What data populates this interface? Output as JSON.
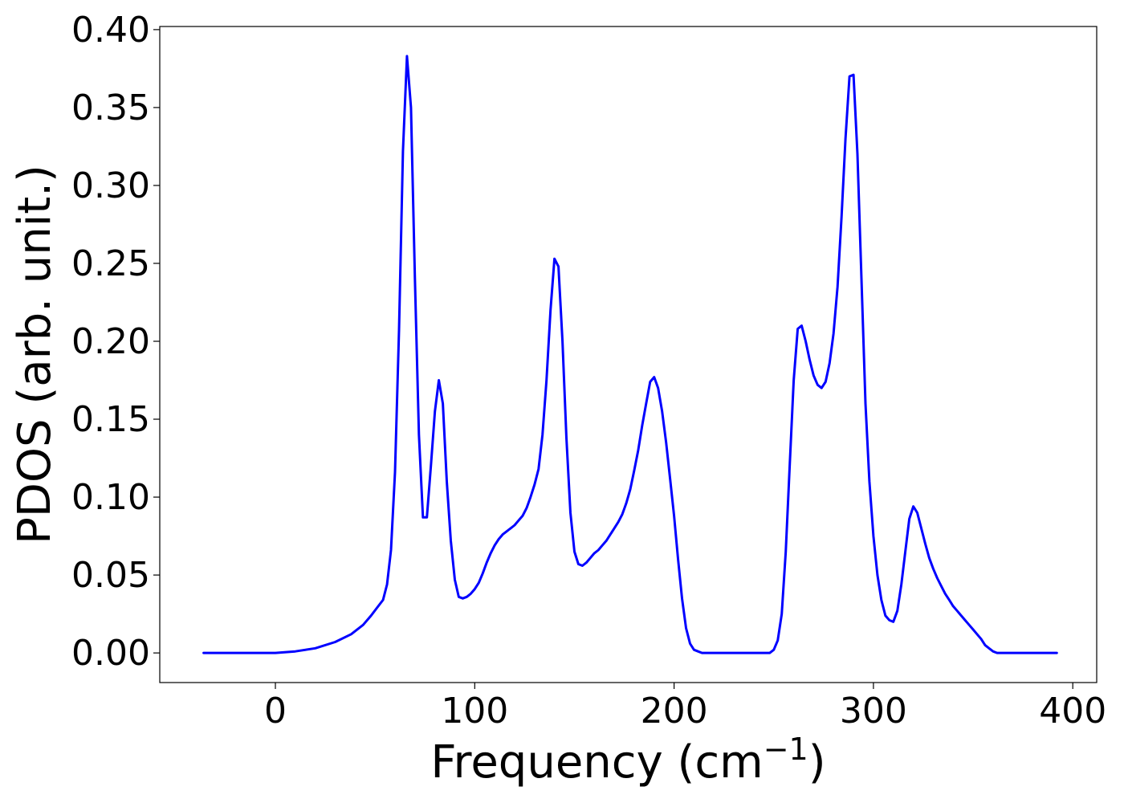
{
  "chart_data": {
    "type": "line",
    "title": "",
    "xlabel": "Frequency (cm",
    "xlabel_superscript": "−1",
    "xlabel_close": ")",
    "ylabel": "PDOS (arb. unit.)",
    "xlim": [
      -58,
      412
    ],
    "ylim": [
      -0.019,
      0.402
    ],
    "xticks": [
      0,
      100,
      200,
      300,
      400
    ],
    "xtick_labels": [
      "0",
      "100",
      "200",
      "300",
      "400"
    ],
    "yticks": [
      0.0,
      0.05,
      0.1,
      0.15,
      0.2,
      0.25,
      0.3,
      0.35,
      0.4
    ],
    "ytick_labels": [
      "0.00",
      "0.05",
      "0.10",
      "0.15",
      "0.20",
      "0.25",
      "0.30",
      "0.35",
      "0.40"
    ],
    "grid": false,
    "legend": "none",
    "series": [
      {
        "color": "#0000ff",
        "x": [
          -36,
          -20,
          0,
          10,
          20,
          30,
          38,
          44,
          48,
          51,
          54,
          56,
          58,
          60,
          62,
          64,
          66,
          68,
          70,
          72,
          74,
          76,
          78,
          80,
          82,
          84,
          86,
          88,
          90,
          92,
          94,
          96,
          98,
          100,
          102,
          104,
          106,
          108,
          110,
          112,
          114,
          116,
          118,
          120,
          122,
          124,
          126,
          128,
          130,
          132,
          134,
          136,
          138,
          140,
          142,
          144,
          146,
          148,
          150,
          152,
          154,
          156,
          158,
          160,
          162,
          164,
          166,
          168,
          170,
          172,
          174,
          176,
          178,
          180,
          182,
          184,
          186,
          188,
          190,
          192,
          194,
          196,
          198,
          200,
          202,
          204,
          206,
          208,
          210,
          212,
          214,
          220,
          230,
          240,
          248,
          250,
          252,
          254,
          256,
          258,
          260,
          262,
          264,
          266,
          268,
          270,
          272,
          274,
          276,
          278,
          280,
          282,
          284,
          286,
          288,
          290,
          292,
          294,
          296,
          298,
          300,
          302,
          304,
          306,
          308,
          310,
          312,
          314,
          316,
          318,
          320,
          322,
          324,
          326,
          328,
          330,
          332,
          334,
          336,
          338,
          340,
          342,
          344,
          346,
          348,
          350,
          352,
          354,
          356,
          358,
          360,
          362,
          364,
          370,
          380,
          392
        ],
        "y": [
          0.0,
          0.0,
          0.0,
          0.001,
          0.003,
          0.007,
          0.012,
          0.018,
          0.024,
          0.029,
          0.034,
          0.044,
          0.066,
          0.116,
          0.207,
          0.322,
          0.383,
          0.35,
          0.24,
          0.14,
          0.087,
          0.087,
          0.12,
          0.155,
          0.175,
          0.16,
          0.11,
          0.072,
          0.047,
          0.036,
          0.035,
          0.036,
          0.038,
          0.041,
          0.045,
          0.051,
          0.058,
          0.064,
          0.069,
          0.073,
          0.076,
          0.078,
          0.08,
          0.082,
          0.085,
          0.088,
          0.093,
          0.1,
          0.108,
          0.118,
          0.14,
          0.175,
          0.22,
          0.253,
          0.248,
          0.2,
          0.138,
          0.09,
          0.065,
          0.057,
          0.056,
          0.058,
          0.061,
          0.064,
          0.066,
          0.069,
          0.072,
          0.076,
          0.08,
          0.084,
          0.089,
          0.096,
          0.105,
          0.117,
          0.13,
          0.146,
          0.16,
          0.174,
          0.177,
          0.17,
          0.155,
          0.135,
          0.112,
          0.088,
          0.06,
          0.035,
          0.016,
          0.006,
          0.002,
          0.001,
          0.0,
          0.0,
          0.0,
          0.0,
          0.0,
          0.002,
          0.008,
          0.025,
          0.065,
          0.12,
          0.175,
          0.208,
          0.21,
          0.2,
          0.188,
          0.178,
          0.172,
          0.17,
          0.174,
          0.186,
          0.205,
          0.235,
          0.28,
          0.33,
          0.37,
          0.371,
          0.32,
          0.24,
          0.16,
          0.11,
          0.075,
          0.05,
          0.034,
          0.024,
          0.021,
          0.02,
          0.027,
          0.044,
          0.065,
          0.086,
          0.094,
          0.09,
          0.08,
          0.07,
          0.061,
          0.054,
          0.048,
          0.043,
          0.038,
          0.034,
          0.03,
          0.027,
          0.024,
          0.021,
          0.018,
          0.015,
          0.012,
          0.009,
          0.005,
          0.003,
          0.001,
          0.0,
          0.0,
          0.0,
          0.0,
          0.0
        ]
      }
    ]
  }
}
